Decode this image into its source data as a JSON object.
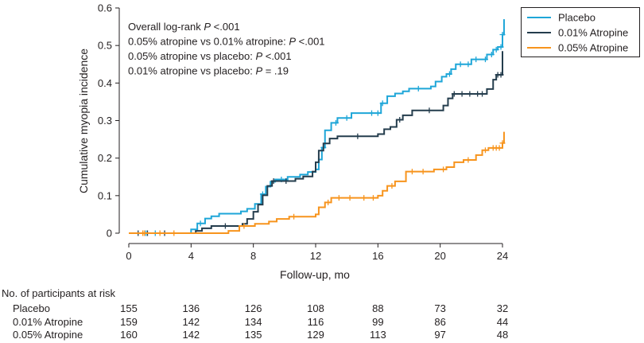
{
  "chart_data": {
    "type": "line",
    "ylabel": "Cumulative myopia incidence",
    "xlabel": "Follow-up, mo",
    "xlim": [
      0,
      24
    ],
    "ylim": [
      0,
      0.6
    ],
    "x_ticks": [
      0,
      4,
      8,
      12,
      16,
      20,
      24
    ],
    "y_ticks": [
      0,
      0.1,
      0.2,
      0.3,
      0.4,
      0.5,
      0.6
    ],
    "y_tick_labels": [
      "0",
      "0.1",
      "0.2",
      "0.3",
      "0.4",
      "0.5",
      "0.6"
    ],
    "grid": false,
    "legend_position": "top-right outside",
    "annotations": [
      {
        "prefix": "Overall log-rank ",
        "p": "P",
        "suffix": " <.001"
      },
      {
        "prefix": "0.05% atropine vs 0.01% atropine: ",
        "p": "P",
        "suffix": " <.001"
      },
      {
        "prefix": "0.05% atropine vs placebo: ",
        "p": "P",
        "suffix": " <.001"
      },
      {
        "prefix": "0.01% atropine vs placebo: ",
        "p": "P",
        "suffix": " = .19"
      }
    ],
    "series": [
      {
        "name": "Placebo",
        "color": "#1ea6d8",
        "steps": [
          [
            0,
            0
          ],
          [
            4.0,
            0.01
          ],
          [
            4.4,
            0.026
          ],
          [
            4.9,
            0.039
          ],
          [
            5.3,
            0.045
          ],
          [
            5.8,
            0.052
          ],
          [
            7.2,
            0.058
          ],
          [
            7.6,
            0.065
          ],
          [
            8.1,
            0.078
          ],
          [
            8.5,
            0.104
          ],
          [
            8.8,
            0.124
          ],
          [
            9.1,
            0.137
          ],
          [
            9.4,
            0.143
          ],
          [
            10.2,
            0.15
          ],
          [
            11.0,
            0.156
          ],
          [
            11.5,
            0.163
          ],
          [
            12.0,
            0.17
          ],
          [
            12.2,
            0.196
          ],
          [
            12.4,
            0.228
          ],
          [
            12.6,
            0.274
          ],
          [
            13.0,
            0.294
          ],
          [
            13.4,
            0.307
          ],
          [
            14.3,
            0.32
          ],
          [
            16.2,
            0.346
          ],
          [
            16.6,
            0.365
          ],
          [
            17.1,
            0.372
          ],
          [
            17.6,
            0.378
          ],
          [
            18.0,
            0.385
          ],
          [
            19.4,
            0.391
          ],
          [
            19.7,
            0.404
          ],
          [
            20.1,
            0.417
          ],
          [
            20.4,
            0.424
          ],
          [
            20.7,
            0.437
          ],
          [
            21.0,
            0.45
          ],
          [
            22.0,
            0.463
          ],
          [
            23.0,
            0.476
          ],
          [
            23.4,
            0.489
          ],
          [
            23.7,
            0.496
          ],
          [
            24.0,
            0.529
          ],
          [
            24.1,
            0.57
          ]
        ],
        "censors": [
          1.1,
          1.7,
          4.6,
          8.6,
          9.8,
          12.5,
          13.3,
          14.0,
          15.6,
          16.0,
          16.3,
          18.6,
          20.6,
          21.3,
          21.8,
          22.3,
          22.9,
          23.3,
          23.6,
          23.9,
          24.0
        ]
      },
      {
        "name": "0.01% Atropine",
        "color": "#243d4d",
        "steps": [
          [
            0,
            0
          ],
          [
            4.3,
            0.006
          ],
          [
            4.7,
            0.013
          ],
          [
            5.3,
            0.019
          ],
          [
            7.3,
            0.025
          ],
          [
            7.6,
            0.038
          ],
          [
            8.0,
            0.057
          ],
          [
            8.3,
            0.076
          ],
          [
            8.6,
            0.101
          ],
          [
            8.9,
            0.126
          ],
          [
            9.2,
            0.139
          ],
          [
            10.7,
            0.145
          ],
          [
            11.2,
            0.151
          ],
          [
            11.8,
            0.164
          ],
          [
            12.0,
            0.189
          ],
          [
            12.2,
            0.22
          ],
          [
            12.5,
            0.239
          ],
          [
            12.9,
            0.252
          ],
          [
            13.4,
            0.258
          ],
          [
            16.0,
            0.264
          ],
          [
            16.4,
            0.277
          ],
          [
            16.8,
            0.283
          ],
          [
            17.2,
            0.302
          ],
          [
            17.6,
            0.314
          ],
          [
            18.2,
            0.327
          ],
          [
            20.2,
            0.34
          ],
          [
            20.5,
            0.359
          ],
          [
            20.8,
            0.371
          ],
          [
            23.0,
            0.384
          ],
          [
            23.4,
            0.409
          ],
          [
            23.6,
            0.422
          ],
          [
            24.0,
            0.485
          ]
        ],
        "censors": [
          0.6,
          1.2,
          2.3,
          6.2,
          9.3,
          10.1,
          14.7,
          17.4,
          19.3,
          20.9,
          21.4,
          21.9,
          22.4,
          22.7,
          23.7,
          23.9
        ]
      },
      {
        "name": "0.05% Atropine",
        "color": "#f7941d",
        "steps": [
          [
            0,
            0
          ],
          [
            6.4,
            0.006
          ],
          [
            7.1,
            0.019
          ],
          [
            8.1,
            0.025
          ],
          [
            9.0,
            0.031
          ],
          [
            9.5,
            0.038
          ],
          [
            10.3,
            0.044
          ],
          [
            12.0,
            0.05
          ],
          [
            12.2,
            0.069
          ],
          [
            12.6,
            0.082
          ],
          [
            13.0,
            0.094
          ],
          [
            16.0,
            0.1
          ],
          [
            16.3,
            0.113
          ],
          [
            16.6,
            0.126
          ],
          [
            17.1,
            0.138
          ],
          [
            17.8,
            0.164
          ],
          [
            19.6,
            0.17
          ],
          [
            20.4,
            0.176
          ],
          [
            20.9,
            0.189
          ],
          [
            21.5,
            0.195
          ],
          [
            22.3,
            0.208
          ],
          [
            22.7,
            0.221
          ],
          [
            23.1,
            0.227
          ],
          [
            24.0,
            0.24
          ],
          [
            24.1,
            0.27
          ]
        ],
        "censors": [
          0.9,
          1.0,
          2.0,
          2.9,
          7.4,
          10.6,
          12.8,
          13.5,
          14.2,
          15.1,
          15.7,
          16.9,
          18.2,
          18.9,
          20.2,
          21.8,
          22.9,
          23.4,
          23.6,
          23.8,
          24.0
        ]
      }
    ]
  },
  "risk_table": {
    "heading": "No. of participants at risk",
    "times": [
      0,
      4,
      8,
      12,
      16,
      20,
      24
    ],
    "rows": [
      {
        "label": "Placebo",
        "values": [
          "155",
          "136",
          "126",
          "108",
          "88",
          "73",
          "32"
        ]
      },
      {
        "label": "0.01% Atropine",
        "values": [
          "159",
          "142",
          "134",
          "116",
          "99",
          "86",
          "44"
        ]
      },
      {
        "label": "0.05% Atropine",
        "values": [
          "160",
          "142",
          "135",
          "129",
          "113",
          "97",
          "48"
        ]
      }
    ]
  }
}
